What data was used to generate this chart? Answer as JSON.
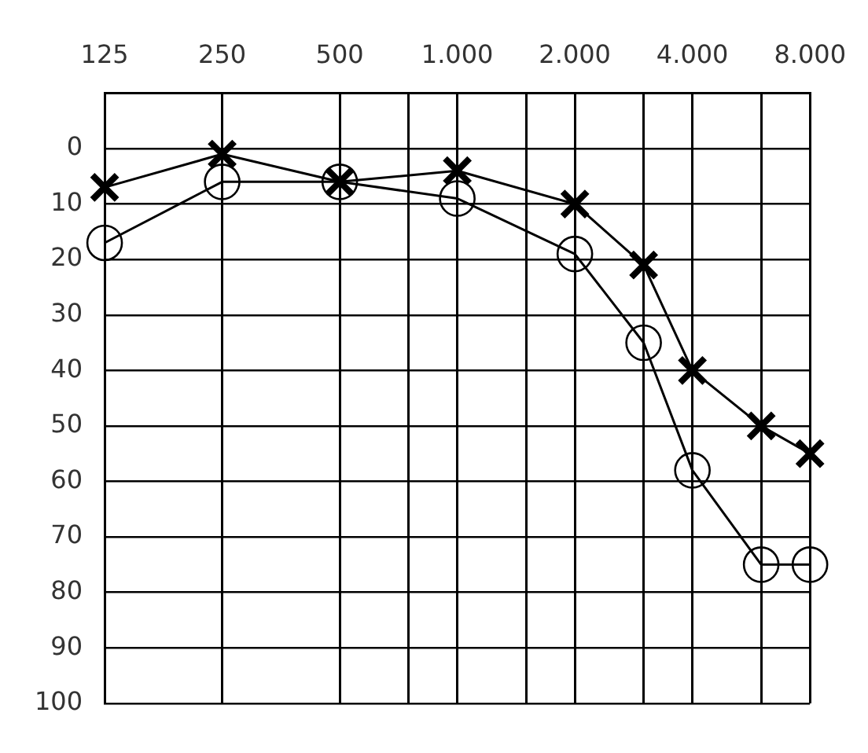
{
  "chart_data": {
    "type": "line",
    "xlim": [
      125,
      8000
    ],
    "ylim": [
      100,
      -10
    ],
    "log": "x",
    "xticks": [
      125,
      250,
      500,
      {
        "value": 750,
        "label": null
      },
      {
        "value": 1000,
        "label": "1.000"
      },
      {
        "value": 1500,
        "label": null
      },
      {
        "value": 2000,
        "label": "2.000"
      },
      {
        "value": 3000,
        "label": null
      },
      {
        "value": 4000,
        "label": "4.000"
      },
      {
        "value": 6000,
        "label": null
      },
      {
        "value": 8000,
        "label": "8.000"
      }
    ],
    "yticks": [
      {
        "value": -10,
        "label": null
      },
      0,
      10,
      20,
      30,
      40,
      50,
      60,
      70,
      80,
      90,
      100
    ],
    "grid": true,
    "series": [
      {
        "color": "#000000",
        "marker": "cross",
        "x": [
          125,
          250,
          500,
          1000,
          2000,
          3000,
          4000,
          6000,
          8000
        ],
        "values": [
          7,
          1,
          6,
          4,
          10,
          21,
          40,
          50,
          55
        ]
      },
      {
        "color": "#000000",
        "marker": "circle",
        "x": [
          125,
          250,
          500,
          1000,
          2000,
          3000,
          4000,
          6000,
          8000
        ],
        "values": [
          17,
          6,
          6,
          9,
          19,
          35,
          58,
          75,
          75
        ]
      }
    ]
  }
}
